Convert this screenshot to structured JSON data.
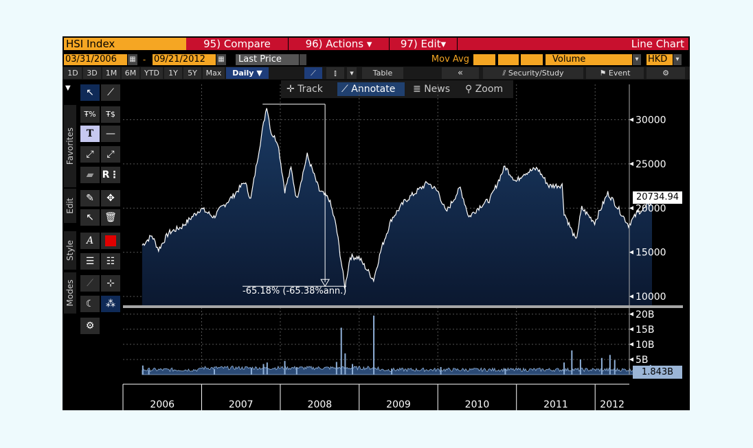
{
  "header": {
    "ticker": "HSI Index",
    "compare": "95) Compare",
    "actions": "96) Actions",
    "edit": "97) Edit",
    "chart_type": "Line Chart"
  },
  "range": {
    "start": "03/31/2006",
    "end": "09/21/2012",
    "field": "Last Price",
    "mov_avg": "Mov Avg",
    "volume": "Volume",
    "currency": "HKD"
  },
  "toolbar": {
    "periods": [
      "1D",
      "3D",
      "1M",
      "6M",
      "YTD",
      "1Y",
      "5Y",
      "Max"
    ],
    "frequency": "Daily",
    "table": "Table",
    "collapse": "«",
    "security_study": "Security/Study",
    "event": "Event"
  },
  "chart_tools": {
    "track": "Track",
    "annotate": "Annotate",
    "news": "News",
    "zoom": "Zoom"
  },
  "side_tabs": {
    "favorites": "Favorites",
    "edit": "Edit",
    "style": "Style",
    "modes": "Modes"
  },
  "annotation": "-65.18% (-65.38%ann.)",
  "last_price_label": "20734.94",
  "last_volume_label": "1.843B",
  "colors": {
    "orange": "#f5a623",
    "red": "#c8102e",
    "area_top": "#1a3a63",
    "area_bottom": "#0b1830",
    "line": "#ffffff",
    "volume": "#8fb0d8"
  },
  "chart_data": [
    {
      "type": "area",
      "series": [
        {
          "values": [
            [
              "2006-03-31",
              15800
            ],
            [
              "2006-05-15",
              16900
            ],
            [
              "2006-06-15",
              15300
            ],
            [
              "2006-08-01",
              17200
            ],
            [
              "2006-10-01",
              17900
            ],
            [
              "2006-12-29",
              19960
            ],
            [
              "2007-02-27",
              19000
            ],
            [
              "2007-04-01",
              20000
            ],
            [
              "2007-06-01",
              21500
            ],
            [
              "2007-07-20",
              23000
            ],
            [
              "2007-08-17",
              21000
            ],
            [
              "2007-09-20",
              26000
            ],
            [
              "2007-10-30",
              31600
            ],
            [
              "2007-11-20",
              28500
            ],
            [
              "2007-12-20",
              27500
            ],
            [
              "2008-01-22",
              22000
            ],
            [
              "2008-02-20",
              24500
            ],
            [
              "2008-03-17",
              21000
            ],
            [
              "2008-05-05",
              26000
            ],
            [
              "2008-06-30",
              22000
            ],
            [
              "2008-08-15",
              21000
            ],
            [
              "2008-09-16",
              18000
            ],
            [
              "2008-10-27",
              11000
            ],
            [
              "2008-11-20",
              14500
            ],
            [
              "2008-12-31",
              14400
            ],
            [
              "2009-03-09",
              11900
            ],
            [
              "2009-04-15",
              15500
            ],
            [
              "2009-06-01",
              18800
            ],
            [
              "2009-08-01",
              20800
            ],
            [
              "2009-11-16",
              22900
            ],
            [
              "2010-01-04",
              21800
            ],
            [
              "2010-02-08",
              19500
            ],
            [
              "2010-04-15",
              22300
            ],
            [
              "2010-05-25",
              19000
            ],
            [
              "2010-07-20",
              20300
            ],
            [
              "2010-09-01",
              21000
            ],
            [
              "2010-11-08",
              24700
            ],
            [
              "2010-12-31",
              23000
            ],
            [
              "2011-02-01",
              23900
            ],
            [
              "2011-04-08",
              24500
            ],
            [
              "2011-06-01",
              22500
            ],
            [
              "2011-08-01",
              22600
            ],
            [
              "2011-08-10",
              19500
            ],
            [
              "2011-10-04",
              16300
            ],
            [
              "2011-10-31",
              20000
            ],
            [
              "2011-12-30",
              18400
            ],
            [
              "2012-02-29",
              21700
            ],
            [
              "2012-04-01",
              20600
            ],
            [
              "2012-06-04",
              18100
            ],
            [
              "2012-07-20",
              19600
            ],
            [
              "2012-08-15",
              19900
            ],
            [
              "2012-09-21",
              20734.94
            ]
          ]
        }
      ],
      "ylim": [
        9000,
        34000
      ],
      "y_ticks": [
        10000,
        15000,
        20000,
        25000,
        30000
      ],
      "x_ticks": [
        "2006",
        "2007",
        "2008",
        "2009",
        "2010",
        "2011",
        "2012"
      ]
    },
    {
      "type": "bar",
      "series": [
        {
          "values": [
            [
              "2006-04-03",
              3.0
            ],
            [
              "2006-05-01",
              1.5
            ],
            [
              "2007-03-01",
              1.8
            ],
            [
              "2007-08-20",
              2.2
            ],
            [
              "2007-10-15",
              3.5
            ],
            [
              "2007-11-01",
              4.0
            ],
            [
              "2008-01-22",
              4.5
            ],
            [
              "2008-03-17",
              2.5
            ],
            [
              "2008-09-18",
              4.2
            ],
            [
              "2008-10-10",
              15.5
            ],
            [
              "2008-10-28",
              7.0
            ],
            [
              "2008-12-01",
              3.5
            ],
            [
              "2009-03-10",
              19.5
            ],
            [
              "2009-06-01",
              2.0
            ],
            [
              "2010-01-15",
              2.5
            ],
            [
              "2010-11-10",
              2.0
            ],
            [
              "2011-08-10",
              4.0
            ],
            [
              "2011-09-15",
              8.0
            ],
            [
              "2011-10-25",
              5.0
            ],
            [
              "2012-02-01",
              5.5
            ],
            [
              "2012-03-10",
              6.5
            ],
            [
              "2012-04-01",
              4.8
            ],
            [
              "2012-09-14",
              3.2
            ]
          ]
        }
      ],
      "baseline": 1.0,
      "ylim": [
        0,
        22
      ],
      "y_ticks": [
        "5B",
        "10B",
        "15B",
        "20B"
      ]
    }
  ]
}
